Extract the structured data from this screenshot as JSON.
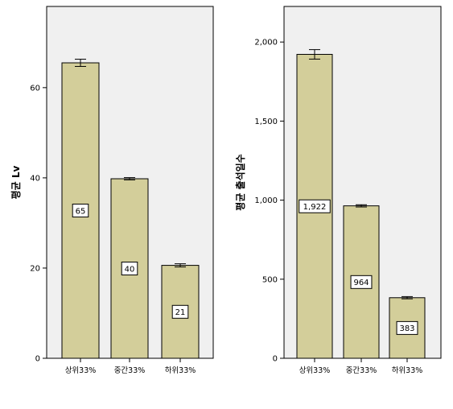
{
  "chart_data": [
    {
      "type": "bar",
      "ylabel": "평균 Lv",
      "ylim": [
        0,
        78
      ],
      "yticks": [
        0,
        20,
        40,
        60
      ],
      "ytick_labels": [
        "0",
        "20",
        "40",
        "60"
      ],
      "categories": [
        "상위33%",
        "중간33%",
        "하위33%"
      ],
      "values": [
        65.5,
        39.8,
        20.6
      ],
      "error": [
        0.8,
        0.25,
        0.35
      ],
      "data_labels": [
        "65",
        "40",
        "21"
      ],
      "bar_color": "#d3ce9a",
      "plot_bg": "#f0f0f0",
      "grid": false
    },
    {
      "type": "bar",
      "ylabel": "평균 출석일수",
      "ylim": [
        0,
        2225
      ],
      "yticks": [
        0,
        500,
        1000,
        1500,
        2000
      ],
      "ytick_labels": [
        "0",
        "500",
        "1,000",
        "1,500",
        "2,000"
      ],
      "categories": [
        "상위33%",
        "중간33%",
        "하위33%"
      ],
      "values": [
        1922,
        964,
        383
      ],
      "error": [
        30,
        7,
        7
      ],
      "data_labels": [
        "1,922",
        "964",
        "383"
      ],
      "bar_color": "#d3ce9a",
      "plot_bg": "#f0f0f0",
      "grid": false
    }
  ]
}
